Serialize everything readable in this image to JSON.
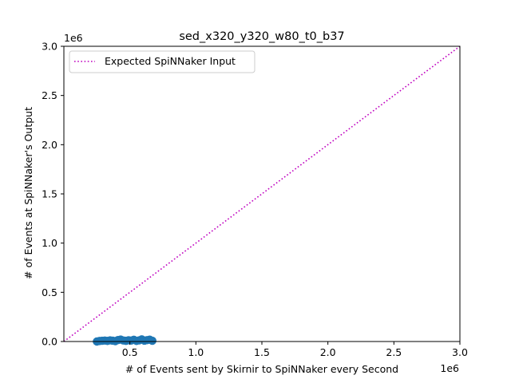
{
  "chart_data": {
    "type": "scatter",
    "title": "sed_x320_y320_w80_t0_b37",
    "xlabel": "# of Events sent by Skirnir to SpiNNaker every Second",
    "ylabel": "# of Events at SpiNNaker's Output",
    "x_offset_label": "1e6",
    "y_offset_label": "1e6",
    "xlim": [
      0,
      3.0
    ],
    "ylim": [
      0,
      3.0
    ],
    "x_ticks": [
      "0.5",
      "1.0",
      "1.5",
      "2.0",
      "2.5",
      "3.0"
    ],
    "x_tick_values": [
      0.5,
      1.0,
      1.5,
      2.0,
      2.5,
      3.0
    ],
    "y_ticks": [
      "0.0",
      "0.5",
      "1.0",
      "1.5",
      "2.0",
      "2.5",
      "3.0"
    ],
    "y_tick_values": [
      0.0,
      0.5,
      1.0,
      1.5,
      2.0,
      2.5,
      3.0
    ],
    "grid": false,
    "legend_position": "top-left",
    "series": [
      {
        "name": "Expected SpiNNaker Input",
        "kind": "line",
        "style": "dotted",
        "color": "#bf00bf",
        "x": [
          0.0,
          3.0
        ],
        "y": [
          0.0,
          3.0
        ]
      },
      {
        "kind": "scatter",
        "color": "#1f77b4",
        "x": [
          0.25,
          0.27,
          0.29,
          0.31,
          0.33,
          0.35,
          0.37,
          0.39,
          0.41,
          0.43,
          0.45,
          0.47,
          0.49,
          0.51,
          0.53,
          0.55,
          0.57,
          0.59,
          0.61,
          0.63,
          0.65,
          0.67
        ],
        "y": [
          0.0,
          0.005,
          0.008,
          0.01,
          0.006,
          0.012,
          0.009,
          0.004,
          0.015,
          0.02,
          0.011,
          0.007,
          0.013,
          0.01,
          0.018,
          0.006,
          0.012,
          0.022,
          0.009,
          0.014,
          0.019,
          0.008
        ]
      }
    ]
  }
}
